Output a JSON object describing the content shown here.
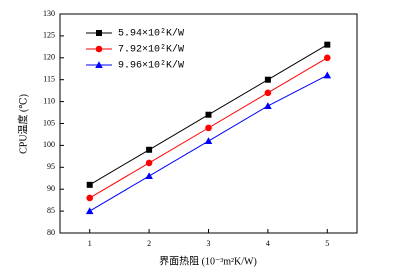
{
  "chart_data": {
    "type": "line",
    "x_label": "界面热阻  (10⁻³m²K/W)",
    "y_label": "CPU温度 (℃)",
    "x": [
      1,
      2,
      3,
      4,
      5
    ],
    "xlim": [
      0.5,
      5.5
    ],
    "xticks": [
      1,
      2,
      3,
      4,
      5
    ],
    "ylim": [
      80,
      130
    ],
    "yticks": [
      80,
      85,
      90,
      95,
      100,
      105,
      110,
      115,
      120,
      125,
      130
    ],
    "legend": "upper-left",
    "series": [
      {
        "name": "5.94×10²K/W",
        "color": "#000000",
        "marker": "square",
        "values": [
          91,
          99,
          107,
          115,
          123
        ]
      },
      {
        "name": "7.92×10²K/W",
        "color": "#ff0000",
        "marker": "circle",
        "values": [
          88,
          96,
          104,
          112,
          120
        ]
      },
      {
        "name": "9.96×10²K/W",
        "color": "#0000ff",
        "marker": "triangle",
        "values": [
          85,
          93,
          101,
          109,
          116
        ]
      }
    ]
  }
}
